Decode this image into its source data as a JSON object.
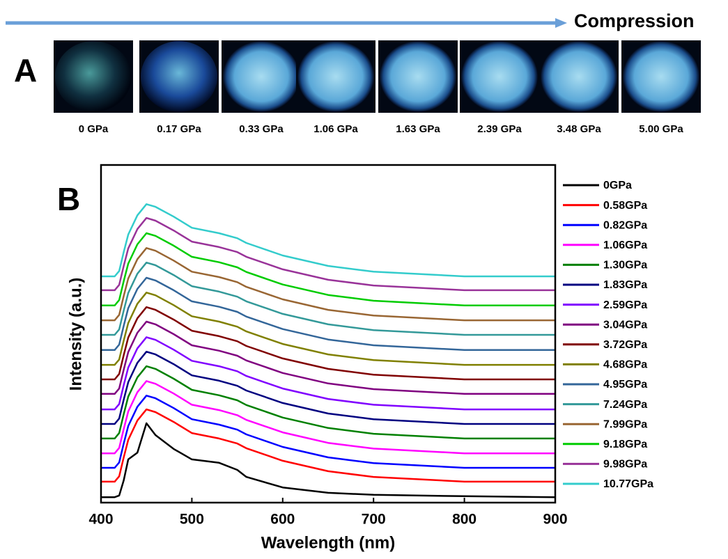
{
  "header": {
    "arrow_label": "Compression"
  },
  "panel_a": {
    "label": "A",
    "pressures": [
      "0 GPa",
      "0.17 GPa",
      "0.33 GPa",
      "1.06 GPa",
      "1.63 GPa",
      "2.39 GPa",
      "3.48 GPa",
      "5.00 GPa"
    ]
  },
  "chart_data": {
    "type": "line",
    "panel_label": "B",
    "x_label": "Wavelength (nm)",
    "y_label": "Intensity (a.u.)",
    "xlim": [
      400,
      900
    ],
    "xticks": [
      400,
      500,
      600,
      700,
      800,
      900
    ],
    "ylim": [
      0,
      100
    ],
    "x": [
      400,
      415,
      420,
      425,
      430,
      440,
      450,
      460,
      480,
      500,
      530,
      550,
      560,
      600,
      650,
      700,
      800,
      900
    ],
    "series": [
      {
        "name": "0GPa",
        "color": "#000000",
        "values": [
          1.6,
          1.6,
          2.1,
          6.6,
          12.8,
          14.8,
          23.5,
          20.0,
          15.9,
          12.8,
          11.8,
          9.7,
          7.6,
          4.5,
          2.9,
          2.3,
          1.9,
          1.6
        ]
      },
      {
        "name": "0.58GPa",
        "color": "#ff0000",
        "values": [
          6.2,
          6.2,
          7.8,
          13.4,
          18.6,
          24.3,
          27.6,
          26.8,
          23.9,
          20.6,
          19.0,
          17.5,
          16.1,
          12.4,
          9.3,
          7.6,
          6.2,
          6.2
        ]
      },
      {
        "name": "0.82GPa",
        "color": "#0000ff",
        "values": [
          10.3,
          10.3,
          11.9,
          17.5,
          22.7,
          28.4,
          31.7,
          30.9,
          28.0,
          24.7,
          23.1,
          21.6,
          20.2,
          16.5,
          13.4,
          11.7,
          10.3,
          10.3
        ]
      },
      {
        "name": "1.06GPa",
        "color": "#ff00ff",
        "values": [
          14.6,
          14.6,
          16.2,
          21.8,
          27.0,
          32.7,
          36.0,
          35.2,
          32.3,
          29.0,
          27.4,
          25.9,
          24.5,
          20.8,
          17.7,
          16.0,
          14.6,
          14.6
        ]
      },
      {
        "name": "1.30GPa",
        "color": "#008000",
        "values": [
          19.0,
          19.0,
          20.6,
          26.2,
          31.4,
          37.1,
          40.4,
          39.6,
          36.7,
          33.4,
          31.8,
          30.3,
          28.9,
          25.2,
          22.1,
          20.4,
          19.0,
          19.0
        ]
      },
      {
        "name": "1.83GPa",
        "color": "#000080",
        "values": [
          23.3,
          23.3,
          24.9,
          30.5,
          35.7,
          41.4,
          44.7,
          43.9,
          41.0,
          37.7,
          36.1,
          34.6,
          33.2,
          29.5,
          26.4,
          24.7,
          23.3,
          23.3
        ]
      },
      {
        "name": "2.59GPa",
        "color": "#8000ff",
        "values": [
          27.6,
          27.6,
          29.2,
          34.8,
          40.0,
          45.7,
          49.0,
          48.2,
          45.3,
          42.0,
          40.4,
          38.9,
          37.5,
          33.8,
          30.7,
          29.0,
          27.6,
          27.6
        ]
      },
      {
        "name": "3.04GPa",
        "color": "#800080",
        "values": [
          32.2,
          32.2,
          33.8,
          39.4,
          44.6,
          50.3,
          53.6,
          52.8,
          49.9,
          46.6,
          45.0,
          43.5,
          42.1,
          38.4,
          35.3,
          33.6,
          32.2,
          32.2
        ]
      },
      {
        "name": "3.72GPa",
        "color": "#800000",
        "values": [
          36.5,
          36.5,
          38.1,
          43.7,
          48.9,
          54.6,
          57.9,
          57.1,
          54.2,
          50.9,
          49.3,
          47.8,
          46.4,
          42.7,
          39.6,
          37.9,
          36.5,
          36.5
        ]
      },
      {
        "name": "4.68GPa",
        "color": "#808000",
        "values": [
          40.8,
          40.8,
          42.4,
          48.0,
          53.2,
          58.9,
          62.2,
          61.4,
          58.5,
          55.2,
          53.6,
          52.1,
          50.7,
          47.0,
          43.9,
          42.2,
          40.8,
          40.8
        ]
      },
      {
        "name": "4.95GPa",
        "color": "#336699",
        "values": [
          45.2,
          45.2,
          46.8,
          52.4,
          57.6,
          63.3,
          66.6,
          65.8,
          62.9,
          59.6,
          58.0,
          56.5,
          55.1,
          51.4,
          48.3,
          46.6,
          45.2,
          45.2
        ]
      },
      {
        "name": "7.24GPa",
        "color": "#339999",
        "values": [
          49.7,
          49.7,
          51.3,
          56.9,
          62.1,
          67.8,
          71.1,
          70.3,
          67.4,
          64.1,
          62.5,
          61.0,
          59.6,
          55.9,
          52.8,
          51.1,
          49.7,
          49.7
        ]
      },
      {
        "name": "7.99GPa",
        "color": "#996633",
        "values": [
          54.0,
          54.0,
          55.6,
          61.2,
          66.4,
          72.1,
          75.4,
          74.6,
          71.7,
          68.4,
          66.8,
          65.3,
          63.9,
          60.2,
          57.1,
          55.4,
          54.0,
          54.0
        ]
      },
      {
        "name": "9.18GPa",
        "color": "#00cc00",
        "values": [
          58.4,
          58.4,
          60.0,
          65.6,
          70.8,
          76.5,
          79.8,
          79.0,
          76.1,
          72.8,
          71.2,
          69.7,
          68.3,
          64.6,
          61.5,
          59.8,
          58.4,
          58.4
        ]
      },
      {
        "name": "9.98GPa",
        "color": "#993399",
        "values": [
          62.9,
          62.9,
          64.5,
          70.1,
          75.3,
          81.0,
          84.3,
          83.5,
          80.6,
          77.3,
          75.7,
          74.2,
          72.8,
          69.1,
          66.0,
          64.3,
          62.9,
          62.9
        ]
      },
      {
        "name": "10.77GPa",
        "color": "#33cccc",
        "values": [
          67.0,
          67.0,
          68.6,
          74.2,
          79.4,
          85.1,
          88.4,
          87.6,
          84.7,
          81.4,
          79.8,
          78.3,
          76.9,
          73.2,
          70.1,
          68.4,
          67.0,
          67.0
        ]
      }
    ]
  }
}
